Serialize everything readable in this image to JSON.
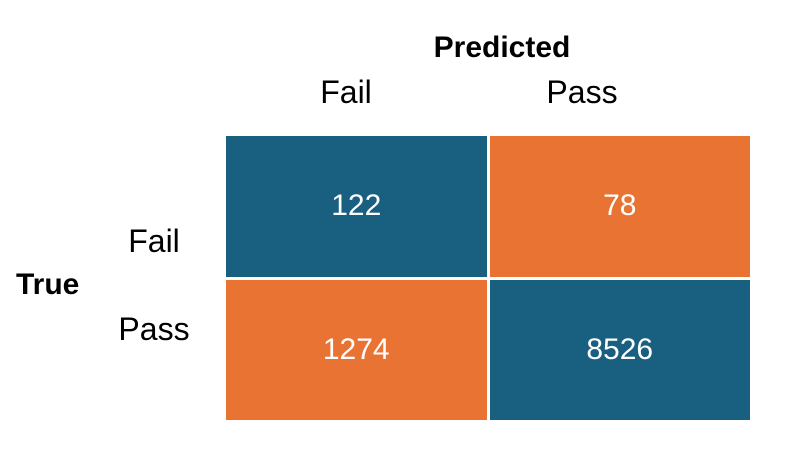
{
  "chart_data": {
    "type": "heatmap",
    "xlabel": "Predicted",
    "ylabel": "True",
    "x_categories": [
      "Fail",
      "Pass"
    ],
    "y_categories": [
      "Fail",
      "Pass"
    ],
    "values": [
      [
        122,
        78
      ],
      [
        1274,
        8526
      ]
    ],
    "value_labels": [
      [
        "122",
        "78"
      ],
      [
        "1274",
        "8526"
      ]
    ],
    "colors": {
      "correct": "#185F80",
      "incorrect": "#E97333"
    }
  }
}
